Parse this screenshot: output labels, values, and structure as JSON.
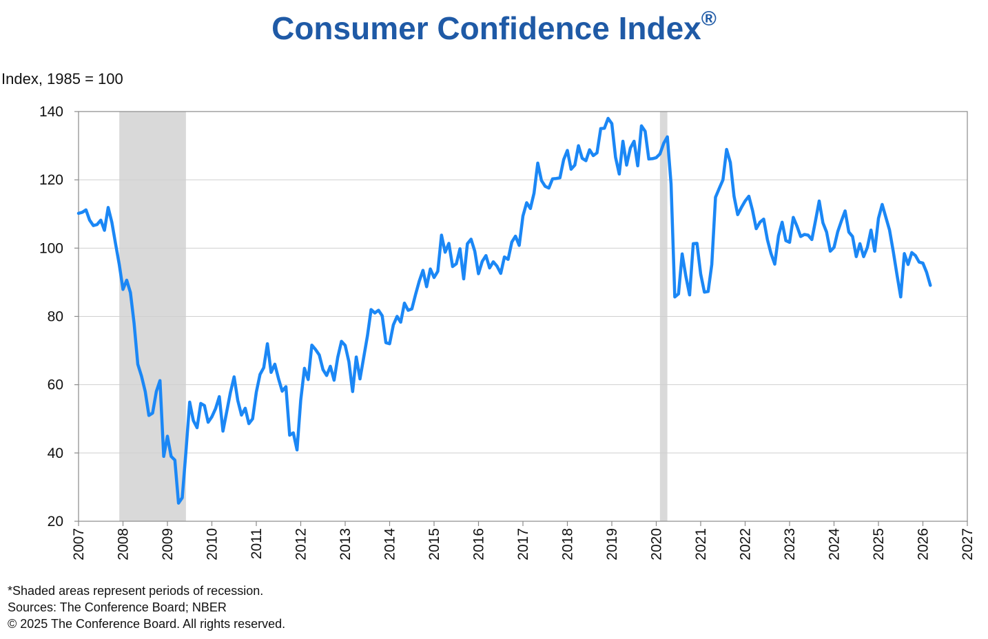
{
  "title": "Consumer Confidence Index",
  "title_mark": "®",
  "y_axis_label": "Index, 1985 = 100",
  "footnotes": {
    "shading": "*Shaded areas represent periods of recession.",
    "sources": "Sources:  The Conference Board;  NBER",
    "copyright": "© 2025 The Conference Board. All rights reserved."
  },
  "colors": {
    "title": "#1f5aa6",
    "line": "#1b87f5",
    "recession": "#d9d9d9",
    "grid": "#cfcfcf"
  },
  "chart_data": {
    "type": "line",
    "title": "Consumer Confidence Index®",
    "ylabel": "Index, 1985 = 100",
    "xlim": [
      2007,
      2027
    ],
    "ylim": [
      20,
      140
    ],
    "x_ticks": [
      "2007",
      "2008",
      "2009",
      "2010",
      "2011",
      "2012",
      "2013",
      "2014",
      "2015",
      "2016",
      "2017",
      "2018",
      "2019",
      "2020",
      "2021",
      "2022",
      "2023",
      "2024",
      "2025",
      "2026",
      "2027"
    ],
    "y_ticks": [
      20,
      40,
      60,
      80,
      100,
      120,
      140
    ],
    "grid": "horizontal",
    "recessions": [
      {
        "start": "2007-12",
        "end": "2009-06"
      },
      {
        "start": "2020-02",
        "end": "2020-04"
      }
    ],
    "series": [
      {
        "points": [
          [
            "2007-01",
            110.2
          ],
          [
            "2007-02",
            110.5
          ],
          [
            "2007-03",
            111.2
          ],
          [
            "2007-04",
            108.2
          ],
          [
            "2007-05",
            106.6
          ],
          [
            "2007-06",
            106.9
          ],
          [
            "2007-07",
            108.2
          ],
          [
            "2007-08",
            105.2
          ],
          [
            "2007-09",
            111.9
          ],
          [
            "2007-10",
            107.5
          ],
          [
            "2007-11",
            101.3
          ],
          [
            "2007-12",
            95.2
          ],
          [
            "2008-01",
            87.9
          ],
          [
            "2008-02",
            90.6
          ],
          [
            "2008-03",
            87.0
          ],
          [
            "2008-04",
            78.0
          ],
          [
            "2008-05",
            66.0
          ],
          [
            "2008-06",
            62.5
          ],
          [
            "2008-07",
            58.0
          ],
          [
            "2008-08",
            51.0
          ],
          [
            "2008-09",
            51.7
          ],
          [
            "2008-10",
            58.0
          ],
          [
            "2008-11",
            61.2
          ],
          [
            "2008-12",
            39.0
          ],
          [
            "2009-01",
            44.9
          ],
          [
            "2009-02",
            39.0
          ],
          [
            "2009-03",
            37.9
          ],
          [
            "2009-04",
            25.3
          ],
          [
            "2009-05",
            26.9
          ],
          [
            "2009-06",
            40.5
          ],
          [
            "2009-07",
            54.9
          ],
          [
            "2009-08",
            49.5
          ],
          [
            "2009-09",
            47.4
          ],
          [
            "2009-10",
            54.5
          ],
          [
            "2009-11",
            53.9
          ],
          [
            "2009-12",
            49.0
          ],
          [
            "2010-01",
            50.6
          ],
          [
            "2010-02",
            53.0
          ],
          [
            "2010-03",
            56.5
          ],
          [
            "2010-04",
            46.4
          ],
          [
            "2010-05",
            52.0
          ],
          [
            "2010-06",
            57.7
          ],
          [
            "2010-07",
            62.3
          ],
          [
            "2010-08",
            55.4
          ],
          [
            "2010-09",
            51.1
          ],
          [
            "2010-10",
            53.1
          ],
          [
            "2010-11",
            48.6
          ],
          [
            "2010-12",
            50.0
          ],
          [
            "2011-01",
            57.8
          ],
          [
            "2011-02",
            63.0
          ],
          [
            "2011-03",
            65.0
          ],
          [
            "2011-04",
            72.0
          ],
          [
            "2011-05",
            63.6
          ],
          [
            "2011-06",
            66.0
          ],
          [
            "2011-07",
            61.7
          ],
          [
            "2011-08",
            58.1
          ],
          [
            "2011-09",
            59.4
          ],
          [
            "2011-10",
            45.2
          ],
          [
            "2011-11",
            45.9
          ],
          [
            "2011-12",
            40.9
          ],
          [
            "2012-01",
            55.5
          ],
          [
            "2012-02",
            64.8
          ],
          [
            "2012-03",
            61.5
          ],
          [
            "2012-04",
            71.6
          ],
          [
            "2012-05",
            70.3
          ],
          [
            "2012-06",
            68.7
          ],
          [
            "2012-07",
            64.4
          ],
          [
            "2012-08",
            62.7
          ],
          [
            "2012-09",
            65.4
          ],
          [
            "2012-10",
            61.3
          ],
          [
            "2012-11",
            68.0
          ],
          [
            "2012-12",
            72.7
          ],
          [
            "2013-01",
            71.5
          ],
          [
            "2013-02",
            66.7
          ],
          [
            "2013-03",
            58.0
          ],
          [
            "2013-04",
            68.1
          ],
          [
            "2013-05",
            61.7
          ],
          [
            "2013-06",
            68.0
          ],
          [
            "2013-07",
            74.3
          ],
          [
            "2013-08",
            82.0
          ],
          [
            "2013-09",
            81.0
          ],
          [
            "2013-10",
            81.8
          ],
          [
            "2013-11",
            80.2
          ],
          [
            "2013-12",
            72.3
          ],
          [
            "2014-01",
            72.0
          ],
          [
            "2014-02",
            77.5
          ],
          [
            "2014-03",
            80.0
          ],
          [
            "2014-04",
            78.3
          ],
          [
            "2014-05",
            83.9
          ],
          [
            "2014-06",
            81.8
          ],
          [
            "2014-07",
            82.2
          ],
          [
            "2014-08",
            86.4
          ],
          [
            "2014-09",
            90.3
          ],
          [
            "2014-10",
            93.5
          ],
          [
            "2014-11",
            88.7
          ],
          [
            "2014-12",
            93.9
          ],
          [
            "2015-01",
            91.4
          ],
          [
            "2015-02",
            93.2
          ],
          [
            "2015-03",
            103.8
          ],
          [
            "2015-04",
            98.8
          ],
          [
            "2015-05",
            101.4
          ],
          [
            "2015-06",
            94.6
          ],
          [
            "2015-07",
            95.4
          ],
          [
            "2015-08",
            99.8
          ],
          [
            "2015-09",
            91.0
          ],
          [
            "2015-10",
            101.3
          ],
          [
            "2015-11",
            102.6
          ],
          [
            "2015-12",
            99.1
          ],
          [
            "2016-01",
            92.5
          ],
          [
            "2016-02",
            96.1
          ],
          [
            "2016-03",
            97.8
          ],
          [
            "2016-04",
            94.2
          ],
          [
            "2016-05",
            96.0
          ],
          [
            "2016-06",
            94.7
          ],
          [
            "2016-07",
            92.6
          ],
          [
            "2016-08",
            97.4
          ],
          [
            "2016-09",
            96.7
          ],
          [
            "2016-10",
            101.8
          ],
          [
            "2016-11",
            103.5
          ],
          [
            "2016-12",
            100.8
          ],
          [
            "2017-01",
            109.4
          ],
          [
            "2017-02",
            113.3
          ],
          [
            "2017-03",
            111.6
          ],
          [
            "2017-04",
            116.1
          ],
          [
            "2017-05",
            124.9
          ],
          [
            "2017-06",
            119.8
          ],
          [
            "2017-07",
            118.1
          ],
          [
            "2017-08",
            117.6
          ],
          [
            "2017-09",
            120.3
          ],
          [
            "2017-10",
            120.4
          ],
          [
            "2017-11",
            120.6
          ],
          [
            "2017-12",
            125.9
          ],
          [
            "2018-01",
            128.6
          ],
          [
            "2018-02",
            123.1
          ],
          [
            "2018-03",
            124.3
          ],
          [
            "2018-04",
            130.0
          ],
          [
            "2018-05",
            126.3
          ],
          [
            "2018-06",
            125.6
          ],
          [
            "2018-07",
            128.8
          ],
          [
            "2018-08",
            127.1
          ],
          [
            "2018-09",
            127.9
          ],
          [
            "2018-10",
            135.0
          ],
          [
            "2018-11",
            135.1
          ],
          [
            "2018-12",
            138.0
          ],
          [
            "2019-01",
            136.5
          ],
          [
            "2019-02",
            126.6
          ],
          [
            "2019-03",
            121.7
          ],
          [
            "2019-04",
            131.3
          ],
          [
            "2019-05",
            124.3
          ],
          [
            "2019-06",
            129.3
          ],
          [
            "2019-07",
            131.3
          ],
          [
            "2019-08",
            124.1
          ],
          [
            "2019-09",
            135.8
          ],
          [
            "2019-10",
            134.2
          ],
          [
            "2019-11",
            126.1
          ],
          [
            "2019-12",
            126.2
          ],
          [
            "2020-01",
            126.5
          ],
          [
            "2020-02",
            127.6
          ],
          [
            "2020-03",
            130.7
          ],
          [
            "2020-04",
            132.6
          ],
          [
            "2020-05",
            118.8
          ],
          [
            "2020-06",
            85.7
          ],
          [
            "2020-07",
            86.6
          ],
          [
            "2020-08",
            98.3
          ],
          [
            "2020-09",
            91.7
          ],
          [
            "2020-10",
            86.3
          ],
          [
            "2020-11",
            101.3
          ],
          [
            "2020-12",
            101.4
          ],
          [
            "2021-01",
            92.4
          ],
          [
            "2021-02",
            87.1
          ],
          [
            "2021-03",
            87.3
          ],
          [
            "2021-04",
            95.2
          ],
          [
            "2021-05",
            114.9
          ],
          [
            "2021-06",
            117.5
          ],
          [
            "2021-07",
            120.0
          ],
          [
            "2021-08",
            128.9
          ],
          [
            "2021-09",
            125.1
          ],
          [
            "2021-10",
            115.2
          ],
          [
            "2021-11",
            109.8
          ],
          [
            "2021-12",
            111.9
          ],
          [
            "2022-01",
            113.8
          ],
          [
            "2022-02",
            115.2
          ],
          [
            "2022-03",
            111.0
          ],
          [
            "2022-04",
            105.7
          ],
          [
            "2022-05",
            107.6
          ],
          [
            "2022-06",
            108.5
          ],
          [
            "2022-07",
            102.5
          ],
          [
            "2022-08",
            98.4
          ],
          [
            "2022-09",
            95.3
          ],
          [
            "2022-10",
            103.6
          ],
          [
            "2022-11",
            107.6
          ],
          [
            "2022-12",
            102.2
          ],
          [
            "2023-01",
            101.7
          ],
          [
            "2023-02",
            109.0
          ],
          [
            "2023-03",
            106.4
          ],
          [
            "2023-04",
            103.4
          ],
          [
            "2023-05",
            104.0
          ],
          [
            "2023-06",
            103.8
          ],
          [
            "2023-07",
            102.5
          ],
          [
            "2023-08",
            108.0
          ],
          [
            "2023-09",
            113.8
          ],
          [
            "2023-10",
            107.4
          ],
          [
            "2023-11",
            104.7
          ],
          [
            "2023-12",
            99.1
          ],
          [
            "2024-01",
            100.2
          ],
          [
            "2024-02",
            104.8
          ],
          [
            "2024-03",
            108.0
          ],
          [
            "2024-04",
            110.9
          ],
          [
            "2024-05",
            104.7
          ],
          [
            "2024-06",
            103.4
          ],
          [
            "2024-07",
            97.5
          ],
          [
            "2024-08",
            101.3
          ],
          [
            "2024-09",
            97.5
          ],
          [
            "2024-10",
            100.2
          ],
          [
            "2024-11",
            105.3
          ],
          [
            "2024-12",
            99.1
          ],
          [
            "2025-01",
            108.7
          ],
          [
            "2025-02",
            112.8
          ],
          [
            "2025-03",
            109.0
          ],
          [
            "2025-04",
            105.3
          ],
          [
            "2025-05",
            99.0
          ],
          [
            "2025-06",
            92.2
          ],
          [
            "2025-07",
            85.7
          ],
          [
            "2025-08",
            98.4
          ],
          [
            "2025-09",
            95.2
          ],
          [
            "2025-10",
            98.7
          ],
          [
            "2025-11",
            97.8
          ],
          [
            "2025-12",
            95.9
          ],
          [
            "2026-01",
            95.6
          ],
          [
            "2026-02",
            92.9
          ],
          [
            "2026-03",
            89.1
          ]
        ]
      }
    ]
  }
}
